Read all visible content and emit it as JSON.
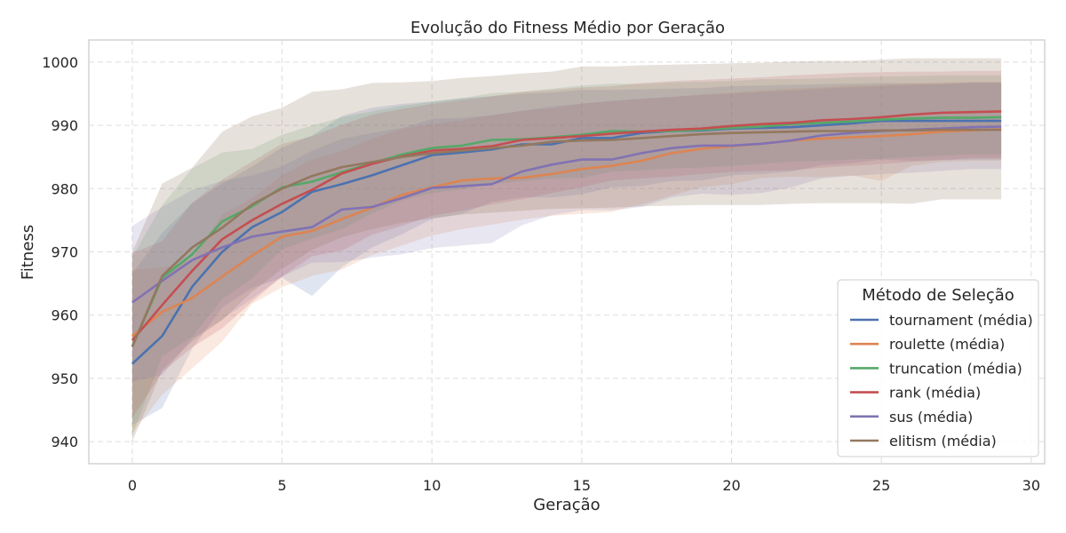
{
  "chart_data": {
    "type": "line",
    "title": "Evolução do Fitness Médio por Geração",
    "xlabel": "Geração",
    "ylabel": "Fitness",
    "xlim": [
      -1.45,
      30.45
    ],
    "ylim": [
      936.5,
      1003.5
    ],
    "xticks": [
      0,
      5,
      10,
      15,
      20,
      25,
      30
    ],
    "yticks": [
      940,
      950,
      960,
      970,
      980,
      990,
      1000
    ],
    "grid": true,
    "legend": {
      "title": "Método de Seleção",
      "placement": "lower-right"
    },
    "x": [
      0,
      1,
      2,
      3,
      4,
      5,
      6,
      7,
      8,
      9,
      10,
      11,
      12,
      13,
      14,
      15,
      16,
      17,
      18,
      19,
      20,
      21,
      22,
      23,
      24,
      25,
      26,
      27,
      28,
      29
    ],
    "series": [
      {
        "name": "tournament (média)",
        "color": "#4c72b0",
        "band_opacity": 0.18,
        "values": [
          952.3,
          956.7,
          964.5,
          970.0,
          973.9,
          976.3,
          979.5,
          980.7,
          982.1,
          983.7,
          985.3,
          985.7,
          986.2,
          987.0,
          987.0,
          988.0,
          988.0,
          988.8,
          989.1,
          989.2,
          989.5,
          989.6,
          989.7,
          990.0,
          990.3,
          990.7,
          990.7,
          990.7,
          990.7,
          990.7
        ],
        "lower": [
          942.6,
          945.3,
          954.7,
          961.2,
          964.3,
          965.9,
          963.0,
          967.6,
          970.7,
          972.8,
          975.2,
          976.0,
          977.9,
          978.6,
          978.6,
          979.1,
          980.2,
          980.4,
          981.2,
          981.3,
          982.1,
          982.3,
          982.7,
          983.7,
          984.0,
          984.6,
          984.4,
          984.5,
          984.6,
          984.6
        ],
        "upper": [
          966.5,
          973.0,
          977.7,
          980.8,
          983.5,
          986.5,
          988.4,
          991.5,
          992.8,
          993.4,
          993.8,
          994.3,
          994.6,
          995.0,
          995.2,
          995.6,
          995.6,
          995.7,
          995.8,
          995.9,
          996.2,
          996.3,
          996.4,
          996.5,
          996.6,
          996.7,
          996.6,
          996.5,
          996.7,
          996.7
        ]
      },
      {
        "name": "roulette (média)",
        "color": "#dd8452",
        "band_opacity": 0.18,
        "values": [
          956.7,
          960.5,
          962.7,
          966.1,
          969.4,
          972.4,
          973.3,
          975.2,
          977.0,
          979.0,
          980.2,
          981.3,
          981.6,
          981.7,
          982.3,
          983.1,
          983.6,
          984.4,
          985.6,
          986.3,
          986.7,
          987.1,
          987.6,
          987.9,
          988.1,
          988.3,
          988.6,
          989.0,
          989.2,
          989.4
        ],
        "lower": [
          941.3,
          947.4,
          951.6,
          955.8,
          961.8,
          964.4,
          966.2,
          967.2,
          969.5,
          971.0,
          972.6,
          973.6,
          974.3,
          975.1,
          975.7,
          976.0,
          976.3,
          977.5,
          978.9,
          980.2,
          980.7,
          981.7,
          981.9,
          981.8,
          982.1,
          981.2,
          983.6,
          984.2,
          984.4,
          984.4
        ],
        "upper": [
          967.2,
          967.5,
          968.7,
          975.9,
          978.5,
          982.1,
          984.6,
          985.9,
          987.9,
          989.4,
          990.2,
          990.8,
          991.6,
          992.3,
          992.7,
          993.5,
          993.8,
          994.2,
          994.5,
          994.9,
          995.2,
          995.5,
          995.8,
          996.0,
          996.3,
          996.4,
          996.7,
          996.8,
          996.9,
          996.9
        ]
      },
      {
        "name": "truncation (média)",
        "color": "#55a868",
        "band_opacity": 0.18,
        "values": [
          955.0,
          965.9,
          969.6,
          974.8,
          977.2,
          980.2,
          981.1,
          982.6,
          984.0,
          985.4,
          986.4,
          986.8,
          987.7,
          987.8,
          988.1,
          988.5,
          989.1,
          989.0,
          989.1,
          989.3,
          989.6,
          989.8,
          990.2,
          990.4,
          990.6,
          990.9,
          991.1,
          991.2,
          991.2,
          991.3
        ],
        "lower": [
          941.0,
          953.5,
          956.6,
          962.5,
          965.8,
          970.4,
          972.1,
          973.6,
          976.1,
          978.1,
          979.3,
          979.9,
          980.7,
          981.2,
          981.6,
          981.7,
          982.7,
          982.9,
          983.2,
          983.3,
          983.6,
          983.9,
          984.3,
          984.4,
          984.6,
          984.7,
          985.0,
          985.2,
          985.4,
          985.4
        ],
        "upper": [
          969.2,
          977.4,
          983.2,
          985.7,
          986.3,
          988.5,
          990.0,
          991.3,
          992.2,
          993.1,
          993.7,
          994.3,
          995.1,
          995.3,
          995.8,
          996.3,
          996.6,
          996.5,
          996.8,
          996.9,
          997.0,
          997.3,
          997.3,
          997.4,
          997.6,
          997.7,
          997.8,
          997.9,
          997.9,
          997.9
        ]
      },
      {
        "name": "rank (média)",
        "color": "#c44e52",
        "band_opacity": 0.18,
        "values": [
          956.0,
          961.6,
          967.0,
          972.0,
          975.0,
          977.6,
          979.8,
          982.4,
          983.9,
          985.1,
          986.0,
          986.3,
          986.7,
          987.7,
          988.0,
          988.3,
          988.7,
          989.0,
          989.3,
          989.5,
          989.9,
          990.2,
          990.4,
          990.8,
          991.0,
          991.3,
          991.7,
          992.0,
          992.1,
          992.2
        ],
        "lower": [
          943.7,
          951.0,
          954.9,
          957.9,
          962.1,
          966.1,
          969.3,
          970.2,
          972.7,
          974.1,
          975.7,
          976.5,
          977.5,
          978.3,
          979.3,
          980.2,
          981.3,
          981.6,
          981.9,
          982.3,
          982.6,
          982.8,
          982.9,
          983.3,
          983.6,
          983.9,
          984.2,
          984.5,
          984.8,
          984.8
        ],
        "upper": [
          969.8,
          971.7,
          977.8,
          981.4,
          984.3,
          987.1,
          988.3,
          990.1,
          991.7,
          992.6,
          993.4,
          994.0,
          994.6,
          995.3,
          995.6,
          996.0,
          996.2,
          996.7,
          997.0,
          997.2,
          997.4,
          997.6,
          997.9,
          998.1,
          998.3,
          998.4,
          998.5,
          998.5,
          998.6,
          998.6
        ]
      },
      {
        "name": "sus (média)",
        "color": "#8172b3",
        "band_opacity": 0.18,
        "values": [
          962.0,
          965.4,
          968.7,
          970.7,
          972.4,
          973.2,
          973.9,
          976.7,
          977.1,
          978.5,
          980.1,
          980.4,
          980.7,
          982.7,
          983.8,
          984.6,
          984.6,
          985.6,
          986.4,
          986.8,
          986.8,
          987.1,
          987.6,
          988.4,
          988.8,
          989.1,
          989.3,
          989.5,
          989.7,
          989.8
        ],
        "lower": [
          949.5,
          950.5,
          956.3,
          959.3,
          962.6,
          966.1,
          968.3,
          968.4,
          969.1,
          969.6,
          970.6,
          971.0,
          971.4,
          974.2,
          975.8,
          976.6,
          976.6,
          977.1,
          978.6,
          979.2,
          979.0,
          979.3,
          980.2,
          981.6,
          982.0,
          982.3,
          982.5,
          982.8,
          983.1,
          983.1
        ],
        "upper": [
          974.1,
          977.1,
          979.8,
          981.2,
          982.1,
          983.5,
          986.0,
          987.9,
          988.8,
          989.6,
          991.0,
          991.2,
          991.6,
          992.3,
          993.0,
          993.4,
          993.9,
          994.2,
          994.5,
          994.8,
          995.0,
          995.3,
          995.5,
          995.8,
          996.0,
          996.2,
          996.4,
          996.6,
          996.8,
          996.8
        ]
      },
      {
        "name": "elitism (média)",
        "color": "#937860",
        "band_opacity": 0.22,
        "values": [
          955.0,
          966.2,
          970.7,
          973.8,
          977.5,
          980.0,
          982.0,
          983.4,
          984.2,
          985.0,
          985.6,
          986.0,
          986.4,
          986.8,
          987.4,
          987.6,
          987.7,
          988.0,
          988.3,
          988.6,
          988.8,
          988.9,
          989.0,
          989.1,
          989.1,
          989.2,
          989.2,
          989.3,
          989.3,
          989.3
        ],
        "lower": [
          940.0,
          951.3,
          955.9,
          959.2,
          963.7,
          967.3,
          970.3,
          972.3,
          973.6,
          974.6,
          975.3,
          975.9,
          976.2,
          976.5,
          976.8,
          976.9,
          977.0,
          977.2,
          977.3,
          977.4,
          977.4,
          977.4,
          977.6,
          977.7,
          977.7,
          977.7,
          977.6,
          978.3,
          978.3,
          978.3
        ],
        "upper": [
          970.0,
          980.8,
          983.3,
          989.0,
          991.4,
          992.8,
          995.3,
          995.7,
          996.7,
          996.8,
          997.0,
          997.5,
          997.8,
          998.2,
          998.5,
          999.3,
          999.3,
          999.5,
          999.6,
          999.7,
          999.8,
          999.9,
          1000.1,
          1000.2,
          1000.2,
          1000.4,
          1000.6,
          1000.6,
          1000.6,
          1000.6
        ]
      }
    ]
  }
}
